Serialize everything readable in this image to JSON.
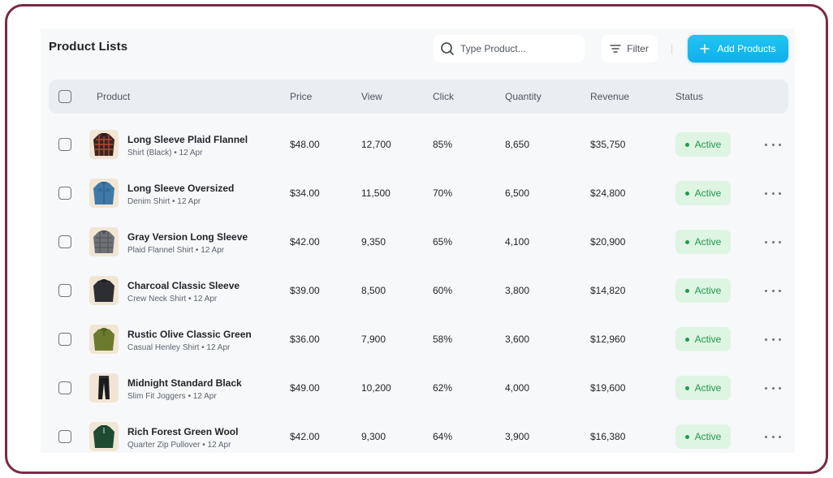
{
  "header": {
    "title": "Product Lists",
    "search_placeholder": "Type Product...",
    "filter_label": "Filter",
    "add_label": "Add Products"
  },
  "columns": {
    "product": "Product",
    "price": "Price",
    "view": "View",
    "click": "Click",
    "quantity": "Quantity",
    "revenue": "Revenue",
    "status": "Status"
  },
  "rows": [
    {
      "name": "Long Sleeve Plaid Flannel",
      "sub": "Shirt (Black) • 12 Apr",
      "price": "$48.00",
      "view": "12,700",
      "click": "85%",
      "quantity": "8,650",
      "revenue": "$35,750",
      "status": "Active",
      "thumb": "plaid-shirt"
    },
    {
      "name": "Long Sleeve Oversized",
      "sub": "Denim Shirt • 12 Apr",
      "price": "$34.00",
      "view": "11,500",
      "click": "70%",
      "quantity": "6,500",
      "revenue": "$24,800",
      "status": "Active",
      "thumb": "denim-shirt"
    },
    {
      "name": "Gray Version Long Sleeve",
      "sub": "Plaid Flannel Shirt • 12 Apr",
      "price": "$42.00",
      "view": "9,350",
      "click": "65%",
      "quantity": "4,100",
      "revenue": "$20,900",
      "status": "Active",
      "thumb": "gray-shirt"
    },
    {
      "name": "Charcoal Classic Sleeve",
      "sub": "Crew Neck Shirt • 12 Apr",
      "price": "$39.00",
      "view": "8,500",
      "click": "60%",
      "quantity": "3,800",
      "revenue": "$14,820",
      "status": "Active",
      "thumb": "charcoal-sweater"
    },
    {
      "name": "Rustic Olive Classic Green",
      "sub": "Casual Henley Shirt • 12 Apr",
      "price": "$36.00",
      "view": "7,900",
      "click": "58%",
      "quantity": "3,600",
      "revenue": "$12,960",
      "status": "Active",
      "thumb": "olive-henley"
    },
    {
      "name": "Midnight Standard Black",
      "sub": "Slim Fit Joggers • 12 Apr",
      "price": "$49.00",
      "view": "10,200",
      "click": "62%",
      "quantity": "4,000",
      "revenue": "$19,600",
      "status": "Active",
      "thumb": "black-joggers"
    },
    {
      "name": "Rich Forest Green Wool",
      "sub": "Quarter Zip Pullover • 12 Apr",
      "price": "$42.00",
      "view": "9,300",
      "click": "64%",
      "quantity": "3,900",
      "revenue": "$16,380",
      "status": "Active",
      "thumb": "green-pullover"
    }
  ],
  "colors": {
    "frame_border": "#7a2a45",
    "accent": "#15b6ef",
    "status_active_bg": "#dff5e4",
    "status_active_text": "#1b9b47"
  }
}
